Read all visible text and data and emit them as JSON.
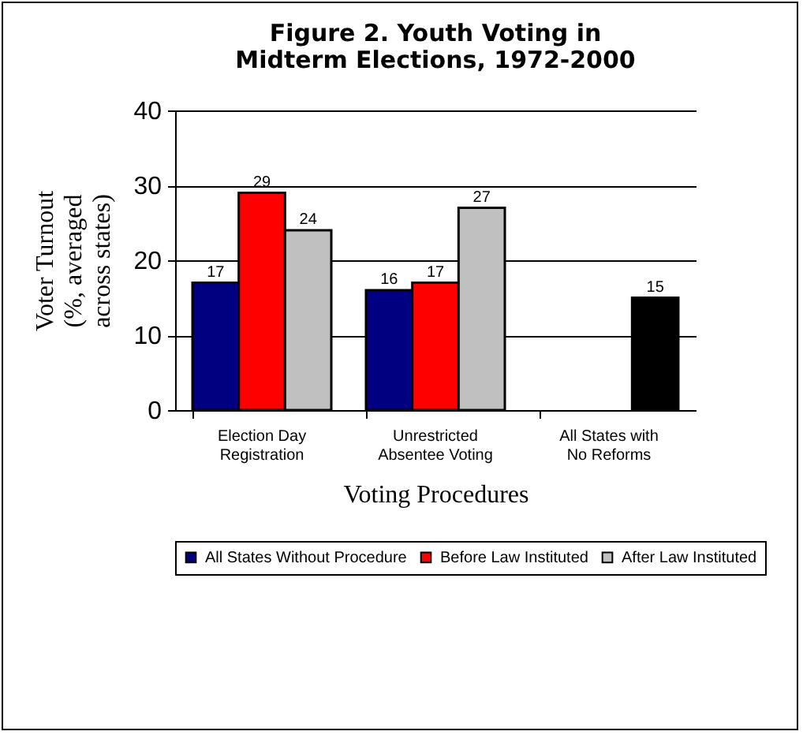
{
  "chart_data": {
    "type": "bar",
    "title": "Figure 2. Youth Voting in Midterm Elections, 1972-2000",
    "xlabel": "Voting Procedures",
    "ylabel": "Voter Turnout (%, averaged across states)",
    "categories": [
      "Election Day Registration",
      "Unrestricted Absentee Voting",
      "All States with No Reforms"
    ],
    "series": [
      {
        "name": "All States Without Procedure",
        "color": "#000080",
        "values": [
          17,
          16,
          null
        ]
      },
      {
        "name": "Before Law Instituted",
        "color": "#ff0000",
        "values": [
          29,
          17,
          null
        ]
      },
      {
        "name": "After Law Instituted",
        "color": "#c0c0c0",
        "colors": [
          "#c0c0c0",
          "#c0c0c0",
          "#000000"
        ],
        "values": [
          24,
          27,
          15
        ]
      }
    ],
    "ylim": [
      0,
      40
    ],
    "yticks": [
      0,
      10,
      20,
      30,
      40
    ],
    "grid": "y",
    "legend": "bottom",
    "data_labels": true
  }
}
